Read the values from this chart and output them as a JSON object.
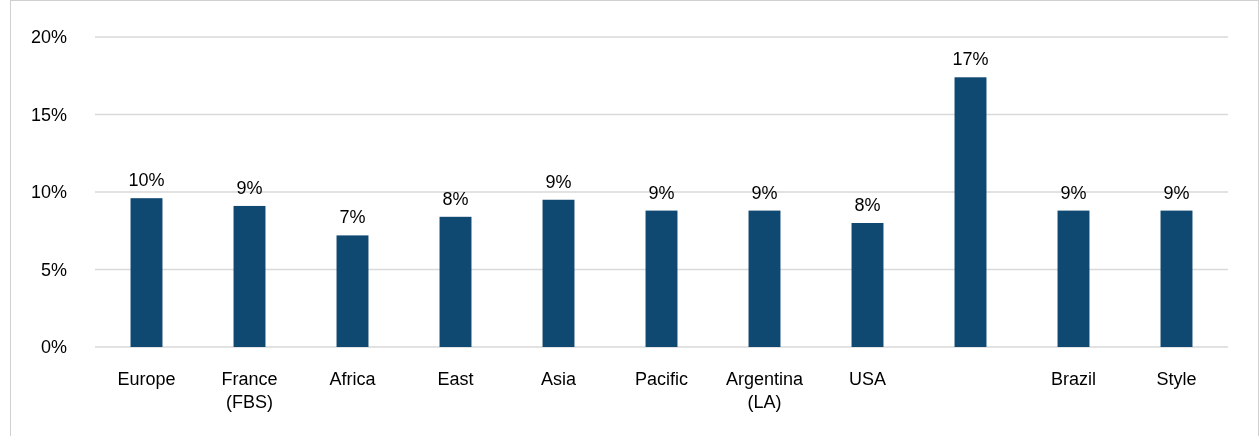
{
  "chart_data": {
    "type": "bar",
    "categories": [
      "Europe",
      "France (FBS)",
      "Africa",
      "East",
      "Asia",
      "Pacific",
      "Argentina (LA)",
      "USA",
      null,
      "Brazil",
      "Style"
    ],
    "values": [
      9.6,
      9.1,
      7.2,
      8.4,
      9.5,
      8.8,
      8.8,
      8.0,
      17.4,
      8.8,
      8.8
    ],
    "value_labels": [
      "10%",
      "9%",
      "7%",
      "8%",
      "9%",
      "9%",
      "9%",
      "8%",
      "17%",
      "9%",
      "9%"
    ],
    "color": "#0f4870",
    "ylim": [
      0,
      20
    ],
    "yticks": [
      {
        "value": 0,
        "label": "0%"
      },
      {
        "value": 5,
        "label": "5%"
      },
      {
        "value": 10,
        "label": "10%"
      },
      {
        "value": 15,
        "label": "15%"
      },
      {
        "value": 20,
        "label": "20%"
      }
    ],
    "grid": "y"
  }
}
